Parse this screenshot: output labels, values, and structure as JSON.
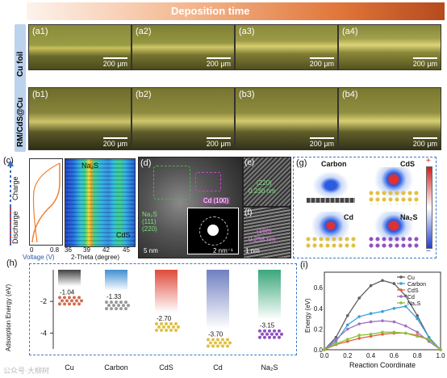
{
  "header": {
    "title": "Deposition time"
  },
  "rows": [
    {
      "side_label": "Cu foil",
      "panels": [
        {
          "label": "(a1)",
          "scale": "200 μm"
        },
        {
          "label": "(a2)",
          "scale": "200 μm"
        },
        {
          "label": "(a3)",
          "scale": "200 μm"
        },
        {
          "label": "(a4)",
          "scale": "200 μm"
        }
      ]
    },
    {
      "side_label": "RM/CdS@Cu",
      "panels": [
        {
          "label": "(b1)",
          "scale": "200 μm"
        },
        {
          "label": "(b2)",
          "scale": "200 μm"
        },
        {
          "label": "(b3)",
          "scale": "200 μm"
        },
        {
          "label": "(b4)",
          "scale": "200 μm"
        }
      ]
    }
  ],
  "panel_c": {
    "label": "(c)",
    "charge": "Charge",
    "discharge": "Discharge",
    "na2s": "Na₂S",
    "cds": "CdS",
    "xlabel_left": "Voltage (V)",
    "xticks_left": [
      "0",
      "0.8"
    ],
    "xlabel_right": "2-Theta (degree)",
    "xticks_right": [
      "36",
      "39",
      "42",
      "45"
    ]
  },
  "panel_d": {
    "label": "(d)",
    "cd": "Cd (100)",
    "na2s": "Na₂S",
    "na2s_planes": "(111)\n(220)",
    "scale_left": "5 nm",
    "scale_right": "2 nm⁻¹"
  },
  "panel_e": {
    "label": "(e)",
    "plane": "(220)",
    "d": "0.230 nm"
  },
  "panel_f": {
    "label": "(f)",
    "plane": "(100)",
    "d": "0.258 nm",
    "scale": "1 nm"
  },
  "panel_g": {
    "label": "(g)",
    "items": [
      "Carbon",
      "CdS",
      "Cd",
      "Na₂S"
    ],
    "plus": "+",
    "minus": "−"
  },
  "chart_data": [
    {
      "type": "bar",
      "panel": "(h)",
      "ylabel": "Adsorption Energy (eV)",
      "categories": [
        "Cu",
        "Carbon",
        "CdS",
        "Cd",
        "Na₂S"
      ],
      "values": [
        -1.04,
        -1.33,
        -2.7,
        -3.7,
        -3.15
      ],
      "value_labels": [
        "-1.04",
        "-1.33",
        "-2.70",
        "-3.70",
        "-3.15"
      ],
      "yticks": [
        "-2",
        "-4"
      ],
      "ylim": [
        0,
        -5
      ],
      "colors": [
        "#404040",
        "#3f8fd0",
        "#e04a3a",
        "#6f7fc0",
        "#3aa77a"
      ]
    },
    {
      "type": "line",
      "panel": "(i)",
      "xlabel": "Reaction Coordinate",
      "ylabel": "Energy (eV)",
      "xlim": [
        0,
        1.0
      ],
      "ylim": [
        0,
        0.75
      ],
      "xticks": [
        "0.0",
        "0.2",
        "0.4",
        "0.6",
        "0.8",
        "1.0"
      ],
      "yticks": [
        "0.0",
        "0.2",
        "0.4",
        "0.6"
      ],
      "x": [
        0.0,
        0.1,
        0.2,
        0.3,
        0.4,
        0.5,
        0.6,
        0.7,
        0.8,
        0.9,
        1.0
      ],
      "series": [
        {
          "name": "Cu",
          "color": "#606060",
          "values": [
            0.0,
            0.12,
            0.33,
            0.5,
            0.62,
            0.67,
            0.64,
            0.52,
            0.33,
            0.12,
            0.0
          ]
        },
        {
          "name": "Carbon",
          "color": "#3aa0d8",
          "values": [
            0.0,
            0.08,
            0.24,
            0.32,
            0.35,
            0.37,
            0.4,
            0.42,
            0.3,
            0.12,
            0.0
          ]
        },
        {
          "name": "CdS",
          "color": "#e0603a",
          "values": [
            0.0,
            0.05,
            0.08,
            0.11,
            0.13,
            0.15,
            0.16,
            0.16,
            0.14,
            0.1,
            0.0
          ]
        },
        {
          "name": "Cd",
          "color": "#a070c0",
          "values": [
            0.0,
            0.1,
            0.2,
            0.25,
            0.27,
            0.28,
            0.27,
            0.23,
            0.17,
            0.08,
            0.0
          ]
        },
        {
          "name": "Na₂S",
          "color": "#8bbf3a",
          "values": [
            0.0,
            0.06,
            0.1,
            0.14,
            0.15,
            0.17,
            0.17,
            0.16,
            0.13,
            0.1,
            0.0
          ]
        }
      ]
    }
  ],
  "watermark": "公众号·大柳树"
}
